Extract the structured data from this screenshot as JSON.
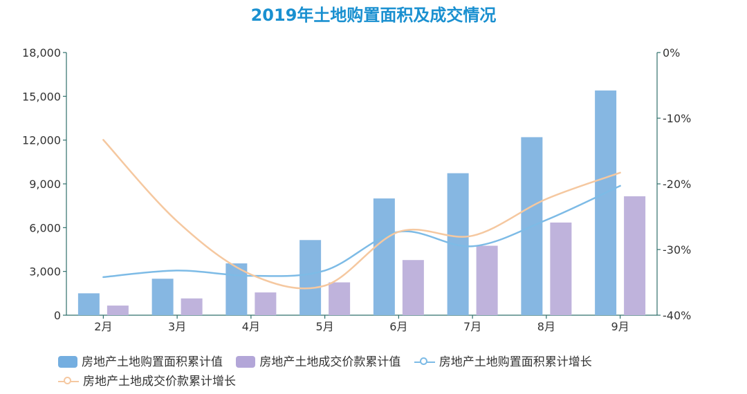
{
  "chart_data": {
    "type": "bar-line-combo",
    "title": "2019年土地购置面积及成交情况",
    "categories": [
      "2月",
      "3月",
      "4月",
      "5月",
      "6月",
      "7月",
      "8月",
      "9月"
    ],
    "y_left": {
      "lim": [
        0,
        18000
      ],
      "ticks": [
        "0",
        "3,000",
        "6,000",
        "9,000",
        "12,000",
        "15,000",
        "18,000"
      ],
      "tick_values": [
        0,
        3000,
        6000,
        9000,
        12000,
        15000,
        18000
      ]
    },
    "y_right": {
      "lim": [
        -40,
        0
      ],
      "ticks": [
        "-40%",
        "-30%",
        "-20%",
        "-10%",
        "0%"
      ],
      "tick_values": [
        -40,
        -30,
        -20,
        -10,
        0
      ]
    },
    "series": [
      {
        "name": "房地产土地购置面积累计值",
        "kind": "bar",
        "axis": "left",
        "color": "#86b7e2",
        "values": [
          1500,
          2500,
          3550,
          5150,
          8000,
          9730,
          12200,
          15400
        ]
      },
      {
        "name": "房地产土地成交价款累计值",
        "kind": "bar",
        "axis": "left",
        "color": "#bfb3dc",
        "values": [
          660,
          1150,
          1560,
          2250,
          3780,
          4760,
          6350,
          8150
        ]
      },
      {
        "name": "房地产土地购置面积累计增长",
        "kind": "line",
        "axis": "right",
        "color": "#7dbbe6",
        "values": [
          -34.2,
          -33.2,
          -34.0,
          -33.2,
          -27.3,
          -29.5,
          -25.5,
          -20.3
        ]
      },
      {
        "name": "房地产土地成交价款累计增长",
        "kind": "line",
        "axis": "right",
        "color": "#f5c8a0",
        "values": [
          -13.3,
          -25.7,
          -33.8,
          -35.5,
          -27.3,
          -27.9,
          -22.3,
          -18.3
        ]
      }
    ]
  }
}
